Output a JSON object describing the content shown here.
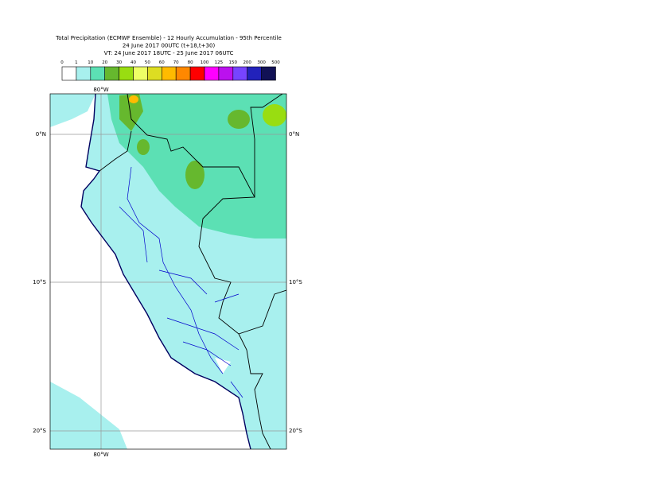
{
  "title": {
    "lines": [
      "Total Precipitation (ECMWF Ensemble) - 12 Hourly Accumulation - 95th Percentile",
      "24 June 2017 00UTC (t+18,t+30)",
      "VT: 24 June 2017 18UTC - 25 June 2017 06UTC"
    ]
  },
  "legend": {
    "labels": [
      "0",
      "1",
      "10",
      "20",
      "30",
      "40",
      "50",
      "60",
      "70",
      "80",
      "100",
      "125",
      "150",
      "200",
      "300",
      "500"
    ],
    "colors": [
      "#ffffff",
      "#a8f0ee",
      "#5ce0b4",
      "#66b82e",
      "#99dd11",
      "#eeff66",
      "#dddd22",
      "#ffbb00",
      "#ff8800",
      "#ff0000",
      "#ff00ff",
      "#bb11ee",
      "#7744ff",
      "#2222bb",
      "#111155"
    ]
  },
  "map": {
    "lon_labels": [
      "80°W"
    ],
    "lat_labels": [
      "0°N",
      "10°S",
      "20°S"
    ]
  }
}
